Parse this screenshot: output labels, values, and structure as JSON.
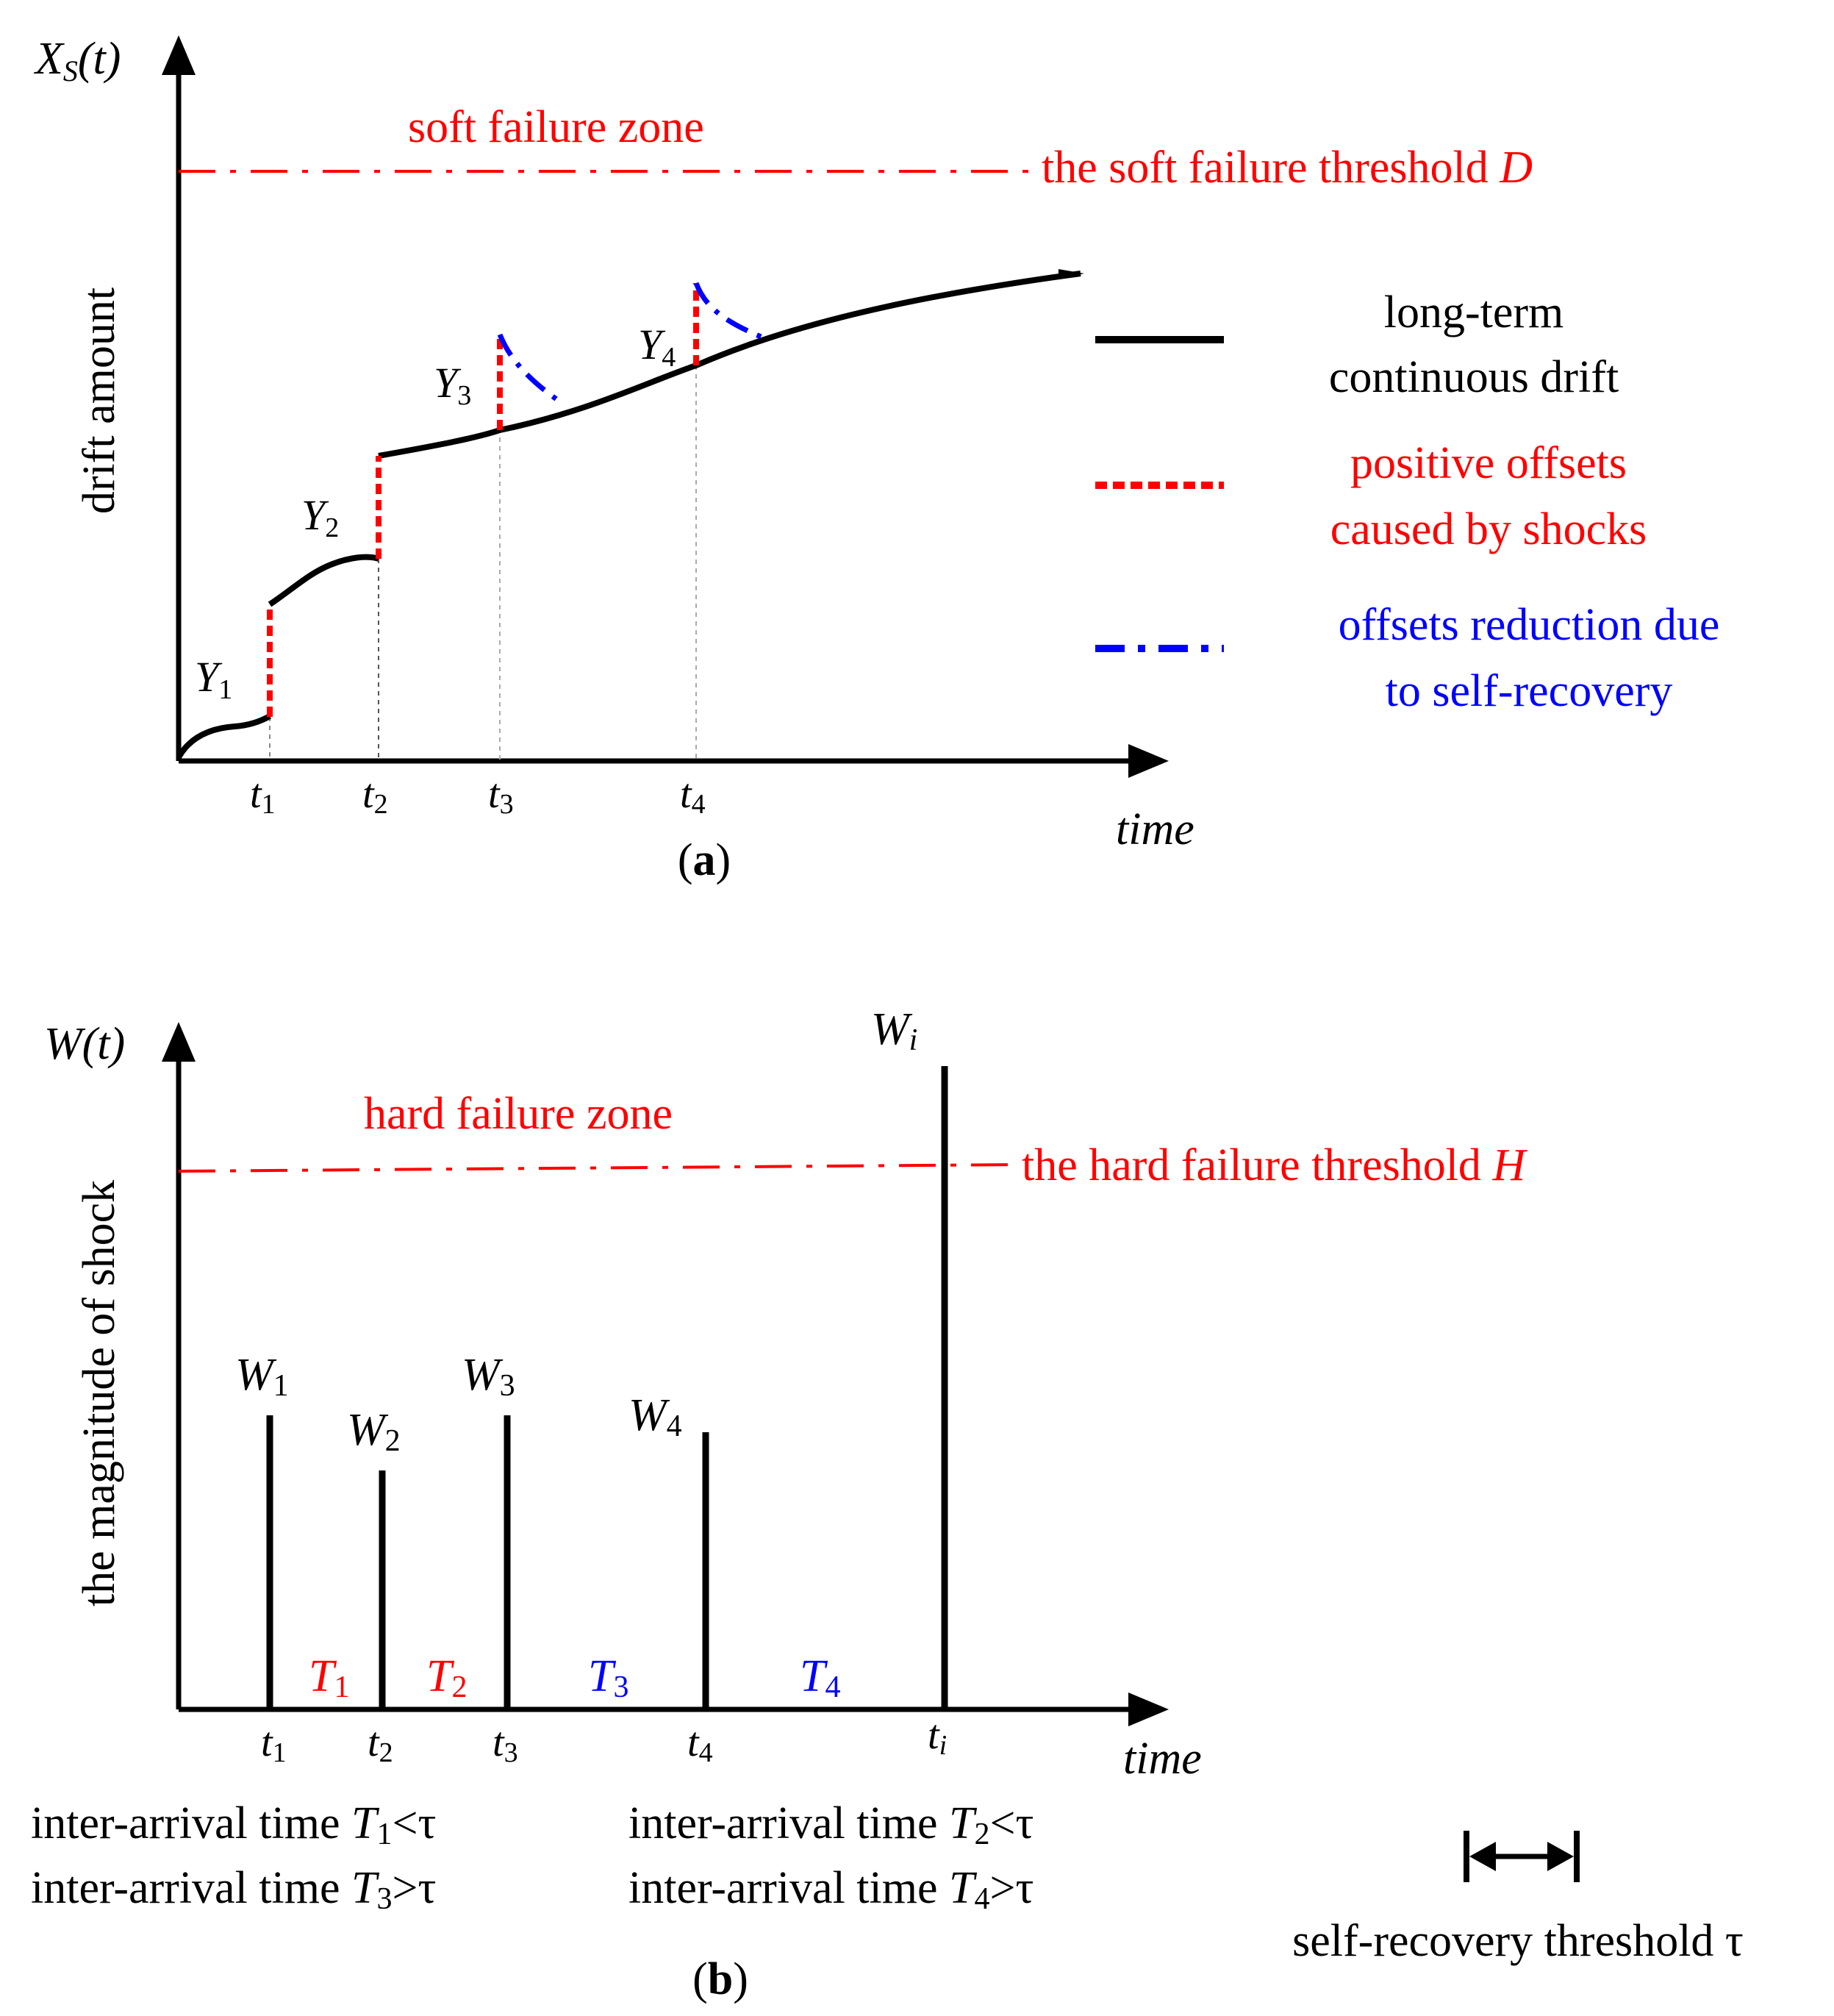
{
  "colors": {
    "black": "#000000",
    "red": "#ff0000",
    "blue": "#0000ff"
  },
  "panel_a": {
    "y_axis_label": "Xs(t)",
    "y_axis_main": "X",
    "y_axis_sub": "S",
    "y_axis_arg": "(t)",
    "y_title": "drift amount",
    "zone_label": "soft failure zone",
    "threshold_label_prefix": "the soft failure threshold ",
    "threshold_symbol": "D",
    "x_axis_label": "time",
    "caption_open": "(",
    "caption_letter": "a",
    "caption_close": ")",
    "jump_labels": [
      {
        "main": "Y",
        "sub": "1"
      },
      {
        "main": "Y",
        "sub": "2"
      },
      {
        "main": "Y",
        "sub": "3"
      },
      {
        "main": "Y",
        "sub": "4"
      }
    ],
    "ticks": [
      {
        "main": "t",
        "sub": "1"
      },
      {
        "main": "t",
        "sub": "2"
      },
      {
        "main": "t",
        "sub": "3"
      },
      {
        "main": "t",
        "sub": "4"
      }
    ],
    "legend": [
      {
        "line1": "long-term",
        "line2": "continuous drift",
        "style": "solid",
        "color": "#000000"
      },
      {
        "line1": "positive offsets",
        "line2": "caused by shocks",
        "style": "dotted",
        "color": "#ff0000"
      },
      {
        "line1": "offsets reduction due",
        "line2": "to self-recovery",
        "style": "dash-dot",
        "color": "#0000ff"
      }
    ]
  },
  "panel_b": {
    "y_axis_label": "W(t)",
    "y_axis_main": "W",
    "y_axis_arg": "(t)",
    "y_title": "the magnitude of shock",
    "zone_label": "hard failure zone",
    "threshold_label_prefix": "the hard failure threshold ",
    "threshold_symbol": "H",
    "x_axis_label": "time",
    "caption_open": "(",
    "caption_letter": "b",
    "caption_close": ")",
    "shock_labels": [
      {
        "main": "W",
        "sub": "1"
      },
      {
        "main": "W",
        "sub": "2"
      },
      {
        "main": "W",
        "sub": "3"
      },
      {
        "main": "W",
        "sub": "4"
      },
      {
        "main": "W",
        "sub": "i"
      }
    ],
    "ticks": [
      {
        "main": "t",
        "sub": "1"
      },
      {
        "main": "t",
        "sub": "2"
      },
      {
        "main": "t",
        "sub": "3"
      },
      {
        "main": "t",
        "sub": "4"
      },
      {
        "main": "t",
        "sub": "i"
      }
    ],
    "intervals": [
      {
        "main": "T",
        "sub": "1",
        "color": "#ff0000"
      },
      {
        "main": "T",
        "sub": "2",
        "color": "#ff0000"
      },
      {
        "main": "T",
        "sub": "3",
        "color": "#0000ff"
      },
      {
        "main": "T",
        "sub": "4",
        "color": "#0000ff"
      }
    ],
    "notes": [
      {
        "prefix": "inter-arrival time ",
        "var": "T",
        "sub": "1",
        "rel": "<τ"
      },
      {
        "prefix": "inter-arrival time ",
        "var": "T",
        "sub": "2",
        "rel": "<τ"
      },
      {
        "prefix": "inter-arrival time ",
        "var": "T",
        "sub": "3",
        "rel": ">τ"
      },
      {
        "prefix": "inter-arrival time ",
        "var": "T",
        "sub": "4",
        "rel": ">τ"
      }
    ],
    "self_recovery_label": "self-recovery threshold τ"
  }
}
